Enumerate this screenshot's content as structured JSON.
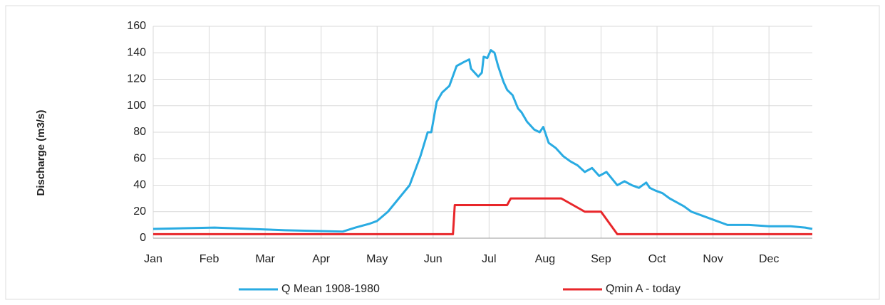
{
  "chart_data": {
    "type": "line",
    "y_label": "Discharge (m3/s)",
    "xlim": [
      0,
      365
    ],
    "xticks": [
      {
        "value": 0,
        "label": "Jan"
      },
      {
        "value": 31,
        "label": "Feb"
      },
      {
        "value": 62,
        "label": "Mar"
      },
      {
        "value": 93,
        "label": "Apr"
      },
      {
        "value": 124,
        "label": "May"
      },
      {
        "value": 155,
        "label": "Jun"
      },
      {
        "value": 186,
        "label": "Jul"
      },
      {
        "value": 217,
        "label": "Aug"
      },
      {
        "value": 248,
        "label": "Sep"
      },
      {
        "value": 279,
        "label": "Oct"
      },
      {
        "value": 310,
        "label": "Nov"
      },
      {
        "value": 341,
        "label": "Dec"
      }
    ],
    "ylim": [
      0,
      160
    ],
    "yticks": [
      0,
      20,
      40,
      60,
      80,
      100,
      120,
      140,
      160
    ],
    "grid": true,
    "series": [
      {
        "name": "Q Mean 1908-1980",
        "color": "#29abe2",
        "x": [
          0,
          34,
          73,
          105,
          112,
          120,
          124,
          130,
          136,
          142,
          148,
          152,
          154,
          157,
          160,
          164,
          168,
          172,
          175,
          176,
          180,
          182,
          183,
          185,
          187,
          189,
          191,
          194,
          196,
          199,
          202,
          204,
          207,
          211,
          214,
          216,
          219,
          223,
          227,
          231,
          235,
          239,
          243,
          247,
          251,
          254,
          257,
          261,
          265,
          269,
          273,
          275,
          278,
          282,
          286,
          290,
          294,
          298,
          304,
          310,
          318,
          330,
          341,
          353,
          361,
          365
        ],
        "values": [
          7,
          8,
          6,
          5,
          8,
          11,
          13,
          20,
          30,
          40,
          62,
          80,
          80,
          103,
          110,
          115,
          130,
          133,
          135,
          128,
          122,
          125,
          137,
          136,
          142,
          140,
          130,
          118,
          112,
          108,
          98,
          95,
          88,
          82,
          80,
          84,
          72,
          68,
          62,
          58,
          55,
          50,
          53,
          47,
          50,
          45,
          40,
          43,
          40,
          38,
          42,
          38,
          36,
          34,
          30,
          27,
          24,
          20,
          17,
          14,
          10,
          10,
          9,
          9,
          8,
          7
        ]
      },
      {
        "name": "Qmin A - today",
        "color": "#e8262a",
        "x": [
          0,
          166,
          167,
          196,
          198,
          226,
          239,
          248,
          257,
          365
        ],
        "values": [
          3,
          3,
          25,
          25,
          30,
          30,
          20,
          20,
          3,
          3
        ]
      }
    ]
  }
}
